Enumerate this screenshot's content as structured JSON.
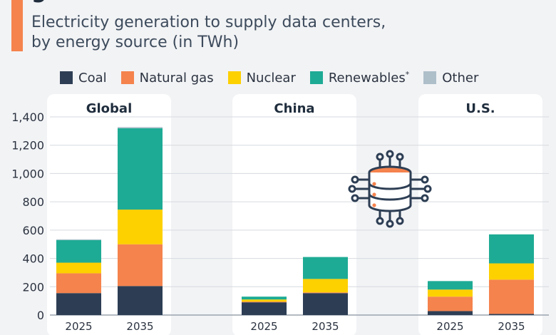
{
  "header": {
    "title_fragment": "g",
    "subtitle_line1": "Electricity generation to supply data centers,",
    "subtitle_line2": "by energy source (in TWh)"
  },
  "colors": {
    "coal": "#2d3e54",
    "natural_gas": "#f5834d",
    "nuclear": "#fdd000",
    "renewables": "#1eab95",
    "other": "#aebfca",
    "panel_bg": "#ffffff",
    "page_bg": "#f2f3f5",
    "accent": "#f5834d"
  },
  "icon": "data-server-icon",
  "chart_data": {
    "type": "bar",
    "stacked": true,
    "ylim": [
      0,
      1400
    ],
    "yticks": [
      0,
      200,
      400,
      600,
      800,
      1000,
      1200,
      1400
    ],
    "ytick_labels": [
      "0",
      "200",
      "400",
      "600",
      "800",
      "1,000",
      "1,200",
      "1,400"
    ],
    "legend_placement": "top",
    "grid": true,
    "legend": [
      {
        "name": "Coal",
        "key": "coal"
      },
      {
        "name": "Natural gas",
        "key": "natural_gas"
      },
      {
        "name": "Nuclear",
        "key": "nuclear"
      },
      {
        "name": "Renewables",
        "key": "renewables",
        "sup": "*"
      },
      {
        "name": "Other",
        "key": "other"
      }
    ],
    "panels": [
      {
        "name": "Global",
        "bars": [
          {
            "x": "2025",
            "coal": 155,
            "natural_gas": 140,
            "nuclear": 75,
            "renewables": 160,
            "other": 5
          },
          {
            "x": "2035",
            "coal": 205,
            "natural_gas": 295,
            "nuclear": 245,
            "renewables": 575,
            "other": 8
          }
        ]
      },
      {
        "name": "China",
        "bars": [
          {
            "x": "2025",
            "coal": 90,
            "natural_gas": 5,
            "nuclear": 15,
            "renewables": 20,
            "other": 0
          },
          {
            "x": "2035",
            "coal": 155,
            "natural_gas": 5,
            "nuclear": 95,
            "renewables": 155,
            "other": 0
          }
        ]
      },
      {
        "name": "U.S.",
        "bars": [
          {
            "x": "2025",
            "coal": 28,
            "natural_gas": 102,
            "nuclear": 50,
            "renewables": 60,
            "other": 0
          },
          {
            "x": "2035",
            "coal": 8,
            "natural_gas": 242,
            "nuclear": 115,
            "renewables": 205,
            "other": 0
          }
        ]
      }
    ]
  }
}
